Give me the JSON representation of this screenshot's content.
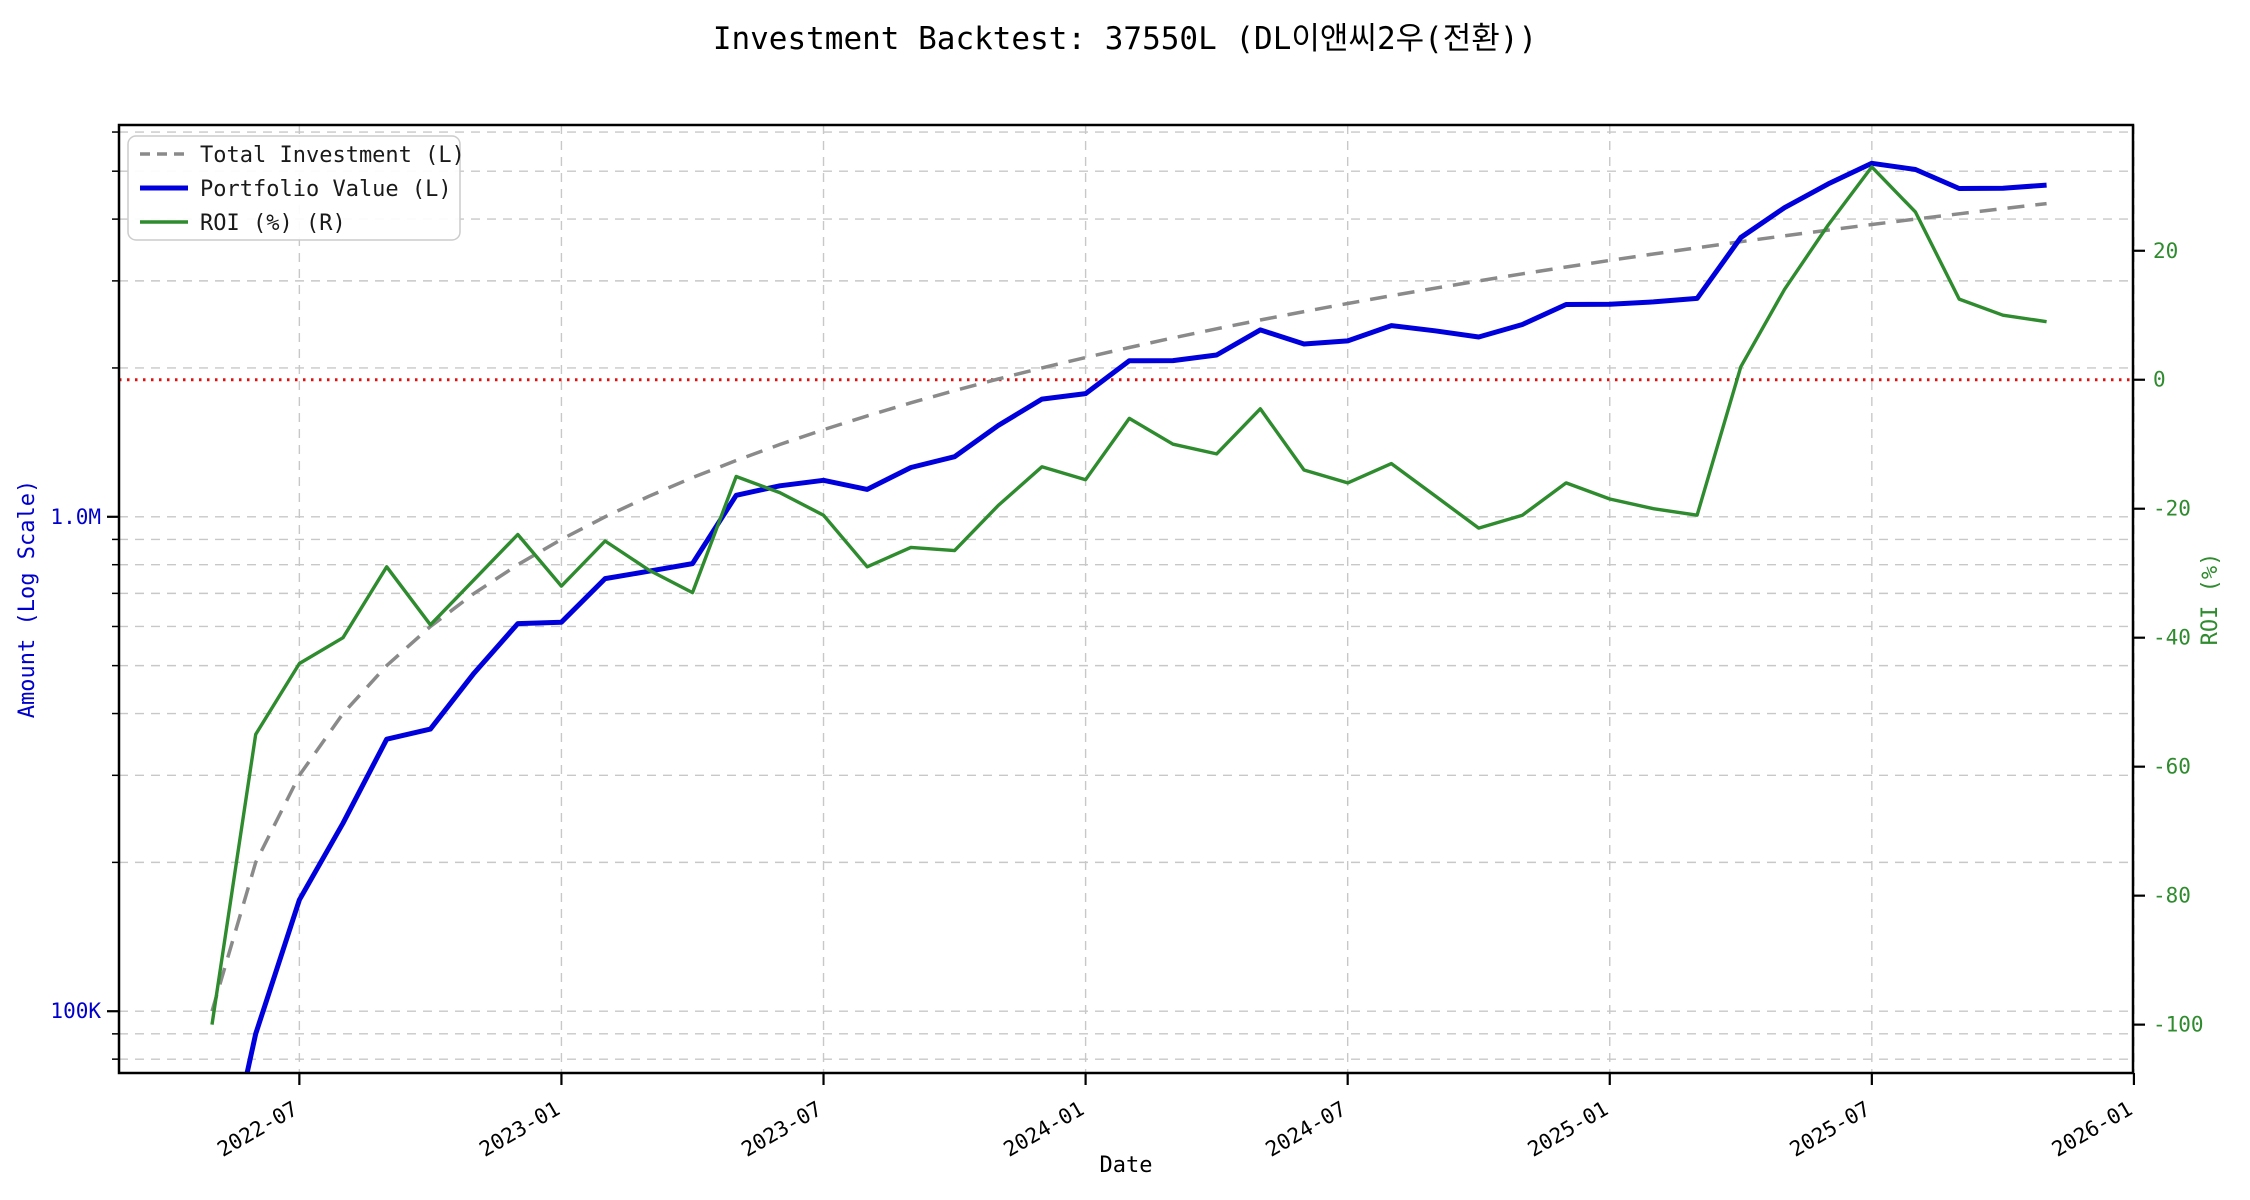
{
  "title": "Investment Backtest: 37550L (DL이앤씨2우(전환))",
  "axes": {
    "x_label": "Date",
    "left_label": "Amount (Log Scale)",
    "right_label": "ROI (%)",
    "x_tick_labels": [
      "2022-07",
      "2023-01",
      "2023-07",
      "2024-01",
      "2024-07",
      "2025-01",
      "2025-07",
      "2026-01"
    ],
    "left_tick_labels": [
      {
        "value": 100000,
        "label": "100K"
      },
      {
        "value": 1000000,
        "label": "1.0M"
      }
    ],
    "right_tick_labels": [
      {
        "value": 20,
        "label": "20"
      },
      {
        "value": 0,
        "label": "0"
      },
      {
        "value": -20,
        "label": "-20"
      },
      {
        "value": -40,
        "label": "-40"
      },
      {
        "value": -60,
        "label": "-60"
      },
      {
        "value": -80,
        "label": "-80"
      },
      {
        "value": -100,
        "label": "-100"
      }
    ]
  },
  "legend": {
    "items": [
      {
        "label": "Total Investment (L)",
        "color": "#8a8a8a",
        "dash": "10 7",
        "width": 3.5
      },
      {
        "label": "Portfolio Value (L)",
        "color": "#0000dd",
        "dash": "",
        "width": 5
      },
      {
        "label": "ROI (%) (R)",
        "color": "#2e8b2e",
        "dash": "",
        "width": 3.5
      }
    ]
  },
  "colors": {
    "total_investment": "#8a8a8a",
    "portfolio_value": "#0000dd",
    "roi": "#2e8b2e",
    "zero_line": "#e01010",
    "left_tick_label": "#0000cc",
    "right_tick_label": "#2e8b2e",
    "grid": "#c8c8c8",
    "spine": "#000000"
  },
  "chart_data": {
    "type": "line",
    "title": "Investment Backtest: 37550L (DL이앤씨2우(전환))",
    "xlabel": "Date",
    "ylabel_left": "Amount (Log Scale)",
    "ylabel_right": "ROI (%)",
    "x_dates": [
      "2022-05",
      "2022-06",
      "2022-07",
      "2022-08",
      "2022-09",
      "2022-10",
      "2022-11",
      "2022-12",
      "2023-01",
      "2023-02",
      "2023-03",
      "2023-04",
      "2023-05",
      "2023-06",
      "2023-07",
      "2023-08",
      "2023-09",
      "2023-10",
      "2023-11",
      "2023-12",
      "2024-01",
      "2024-02",
      "2024-03",
      "2024-04",
      "2024-05",
      "2024-06",
      "2024-07",
      "2024-08",
      "2024-09",
      "2024-10",
      "2024-11",
      "2024-12",
      "2025-01",
      "2025-02",
      "2025-03",
      "2025-04",
      "2025-05",
      "2025-06",
      "2025-07",
      "2025-08",
      "2025-09",
      "2025-10",
      "2025-11"
    ],
    "series": [
      {
        "name": "Total Investment (L)",
        "axis": "left",
        "style": "dashed",
        "values": [
          100000,
          200000,
          300000,
          400000,
          500000,
          600000,
          700000,
          800000,
          900000,
          1000000,
          1100000,
          1200000,
          1300000,
          1400000,
          1500000,
          1600000,
          1700000,
          1800000,
          1900000,
          2000000,
          2100000,
          2200000,
          2300000,
          2400000,
          2500000,
          2600000,
          2700000,
          2800000,
          2900000,
          3000000,
          3100000,
          3200000,
          3300000,
          3400000,
          3500000,
          3600000,
          3700000,
          3800000,
          3900000,
          4000000,
          4100000,
          4200000,
          4300000
        ]
      },
      {
        "name": "Portfolio Value (L)",
        "axis": "left",
        "style": "solid",
        "values": [
          0,
          90000,
          168000,
          240000,
          355000,
          372000,
          483000,
          608000,
          612000,
          750000,
          776000,
          804000,
          1105000,
          1155000,
          1185000,
          1136000,
          1258000,
          1323000,
          1530000,
          1730000,
          1775000,
          2068000,
          2070000,
          2124000,
          2388000,
          2236000,
          2268000,
          2436000,
          2378000,
          2310000,
          2449000,
          2688000,
          2690000,
          2720000,
          2765000,
          3672000,
          4218000,
          4712000,
          5187000,
          5040000,
          4613000,
          4620000,
          4687000
        ]
      },
      {
        "name": "ROI (%) (R)",
        "axis": "right",
        "style": "solid",
        "values": [
          -100,
          -55,
          -44,
          -40,
          -29,
          -38,
          -31,
          -24,
          -32,
          -25,
          -29.5,
          -33,
          -15,
          -17.5,
          -21,
          -29,
          -26,
          -26.5,
          -19.5,
          -13.5,
          -15.5,
          -6,
          -10,
          -11.5,
          -4.5,
          -14,
          -16,
          -13,
          -18,
          -23,
          -21,
          -16,
          -18.5,
          -20,
          -21,
          2,
          14,
          24,
          33,
          26,
          12.5,
          10,
          9
        ]
      }
    ],
    "left_axis": {
      "scale": "log",
      "range": [
        75000,
        6200000
      ]
    },
    "right_axis": {
      "scale": "linear",
      "range": [
        -107.5,
        39.5
      ]
    },
    "reference_lines": [
      {
        "axis": "right",
        "value": 0,
        "style": "dotted",
        "color": "#e01010"
      }
    ],
    "grid": true,
    "legend_position": "upper-left"
  }
}
